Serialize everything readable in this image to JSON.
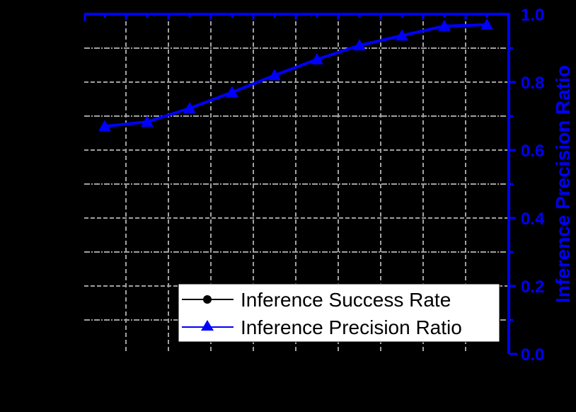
{
  "chart_data": {
    "type": "line",
    "title": "",
    "background": "#000000",
    "xlabel": "",
    "ylabel_left": "",
    "ylabel_right": "Inference Precision Ratio",
    "x_index": [
      1,
      2,
      3,
      4,
      5,
      6,
      7,
      8,
      9,
      10
    ],
    "ylim_right": [
      0.0,
      1.0
    ],
    "right_ticks": [
      "0.0",
      "0.2",
      "0.4",
      "0.6",
      "0.8",
      "1.0"
    ],
    "right_tick_values": [
      0.0,
      0.2,
      0.4,
      0.6,
      0.8,
      1.0
    ],
    "grid": true,
    "legend_position": "lower-right-inside",
    "series": [
      {
        "name": "Inference Success Rate",
        "color": "#000000",
        "marker": "circle",
        "axis": "left",
        "values": []
      },
      {
        "name": "Inference Precision Ratio",
        "color": "#0000FF",
        "marker": "triangle",
        "axis": "right",
        "values": [
          0.67,
          0.683,
          0.723,
          0.77,
          0.82,
          0.867,
          0.908,
          0.937,
          0.965,
          0.969
        ]
      }
    ]
  },
  "colors": {
    "accent": "#0000FF",
    "grid": "#A0A0A0",
    "legend_bg": "#FFFFFF"
  },
  "legend": {
    "items": [
      {
        "label": "Inference Success Rate"
      },
      {
        "label": "Inference Precision Ratio"
      }
    ]
  }
}
